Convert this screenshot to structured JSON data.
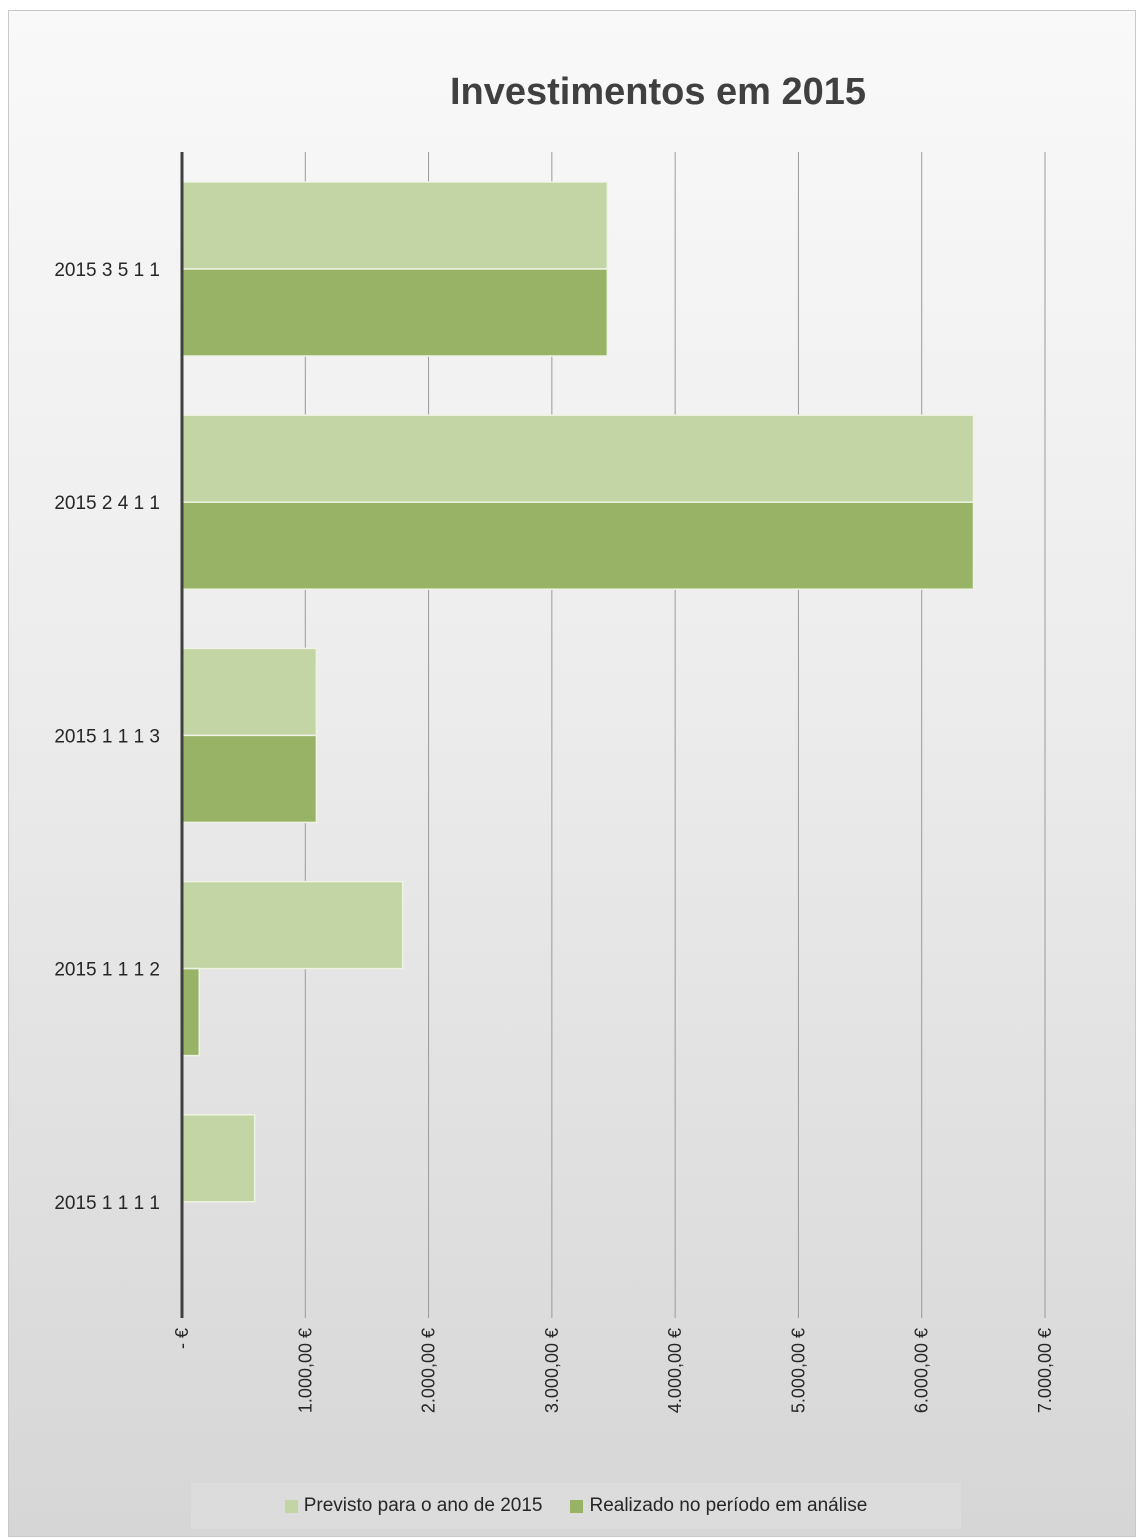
{
  "chart_data": {
    "type": "bar",
    "orientation": "horizontal",
    "title": "Investimentos em 2015",
    "categories": [
      "2015 3 5 1 1",
      "2015 2 4 1 1",
      "2015 1 1 1 3",
      "2015 1 1 1 2",
      "2015 1 1 1 1"
    ],
    "series": [
      {
        "name": "Previsto para o ano de 2015",
        "color": "#c3d5a5",
        "values": [
          3450,
          6420,
          1090,
          1790,
          590
        ]
      },
      {
        "name": "Realizado no período em análise",
        "color": "#98b366",
        "values": [
          3450,
          6420,
          1090,
          140,
          0
        ]
      }
    ],
    "xlim": [
      0,
      7000
    ],
    "x_ticks": [
      0,
      1000,
      2000,
      3000,
      4000,
      5000,
      6000,
      7000
    ],
    "x_tick_labels": [
      "-  €",
      "1.000,00 €",
      "2.000,00 €",
      "3.000,00 €",
      "4.000,00 €",
      "5.000,00 €",
      "6.000,00 €",
      "7.000,00 €"
    ],
    "grid": "vertical",
    "legend_position": "bottom"
  }
}
